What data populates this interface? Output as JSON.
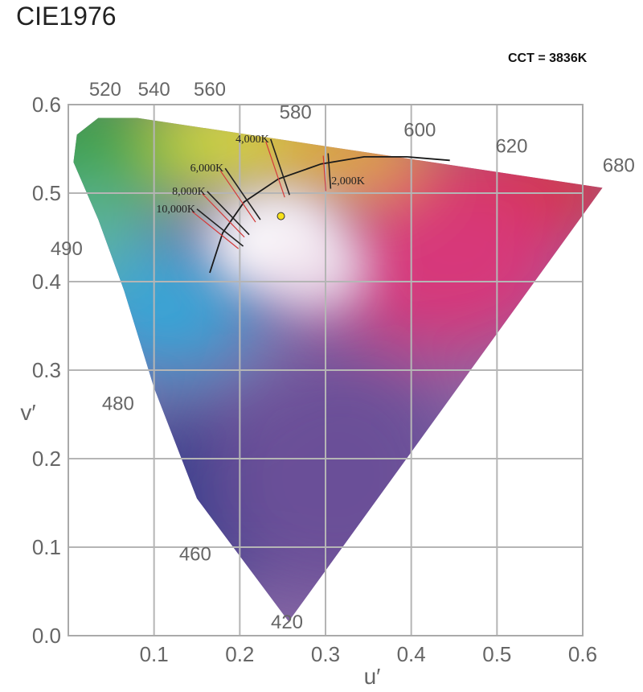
{
  "title": "CIE1976",
  "cct_readout": "CCT = 3836K",
  "marker_color": "#f7e11a",
  "chart_data": {
    "type": "scatter",
    "xlabel": "u′",
    "ylabel": "v′",
    "xlim": [
      0,
      0.6
    ],
    "ylim": [
      0,
      0.6
    ],
    "x_ticks": [
      "0.1",
      "0.2",
      "0.3",
      "0.4",
      "0.5",
      "0.6"
    ],
    "y_ticks": [
      "0.0",
      "0.1",
      "0.2",
      "0.3",
      "0.4",
      "0.5",
      "0.6"
    ],
    "grid": true,
    "spectral_locus": [
      [
        0.257,
        0.016
      ],
      [
        0.15,
        0.155
      ],
      [
        0.1,
        0.28
      ],
      [
        0.065,
        0.39
      ],
      [
        0.035,
        0.47
      ],
      [
        0.006,
        0.535
      ],
      [
        0.01,
        0.566
      ],
      [
        0.035,
        0.585
      ],
      [
        0.08,
        0.585
      ],
      [
        0.623,
        0.506
      ]
    ],
    "wavelength_labels": [
      {
        "label": "420",
        "u": 0.255,
        "v": 0.008
      },
      {
        "label": "460",
        "u": 0.148,
        "v": 0.085
      },
      {
        "label": "480",
        "u": 0.058,
        "v": 0.255
      },
      {
        "label": "490",
        "u": -0.002,
        "v": 0.43
      },
      {
        "label": "520",
        "u": 0.043,
        "v": 0.61
      },
      {
        "label": "540",
        "u": 0.1,
        "v": 0.61
      },
      {
        "label": "560",
        "u": 0.165,
        "v": 0.61
      },
      {
        "label": "580",
        "u": 0.265,
        "v": 0.584
      },
      {
        "label": "600",
        "u": 0.41,
        "v": 0.564
      },
      {
        "label": "620",
        "u": 0.517,
        "v": 0.546
      },
      {
        "label": "680",
        "u": 0.642,
        "v": 0.524
      }
    ],
    "planckian_locus": [
      [
        0.165,
        0.41
      ],
      [
        0.18,
        0.455
      ],
      [
        0.205,
        0.49
      ],
      [
        0.245,
        0.516
      ],
      [
        0.295,
        0.533
      ],
      [
        0.345,
        0.541
      ],
      [
        0.395,
        0.541
      ],
      [
        0.445,
        0.537
      ]
    ],
    "isotherms": [
      {
        "label": "2,000K",
        "from": [
          0.306,
          0.505
        ],
        "to": [
          0.303,
          0.545
        ]
      },
      {
        "label": "4,000K",
        "from": [
          0.258,
          0.498
        ],
        "to": [
          0.236,
          0.561
        ]
      },
      {
        "label": "6,000K",
        "from": [
          0.224,
          0.47
        ],
        "to": [
          0.183,
          0.528
        ]
      },
      {
        "label": "8,000K",
        "from": [
          0.211,
          0.453
        ],
        "to": [
          0.162,
          0.502
        ]
      },
      {
        "label": "10,000K",
        "from": [
          0.204,
          0.44
        ],
        "to": [
          0.15,
          0.482
        ]
      }
    ],
    "series": [
      {
        "name": "CCT = 3836K",
        "points": [
          [
            0.248,
            0.474
          ]
        ]
      }
    ]
  }
}
